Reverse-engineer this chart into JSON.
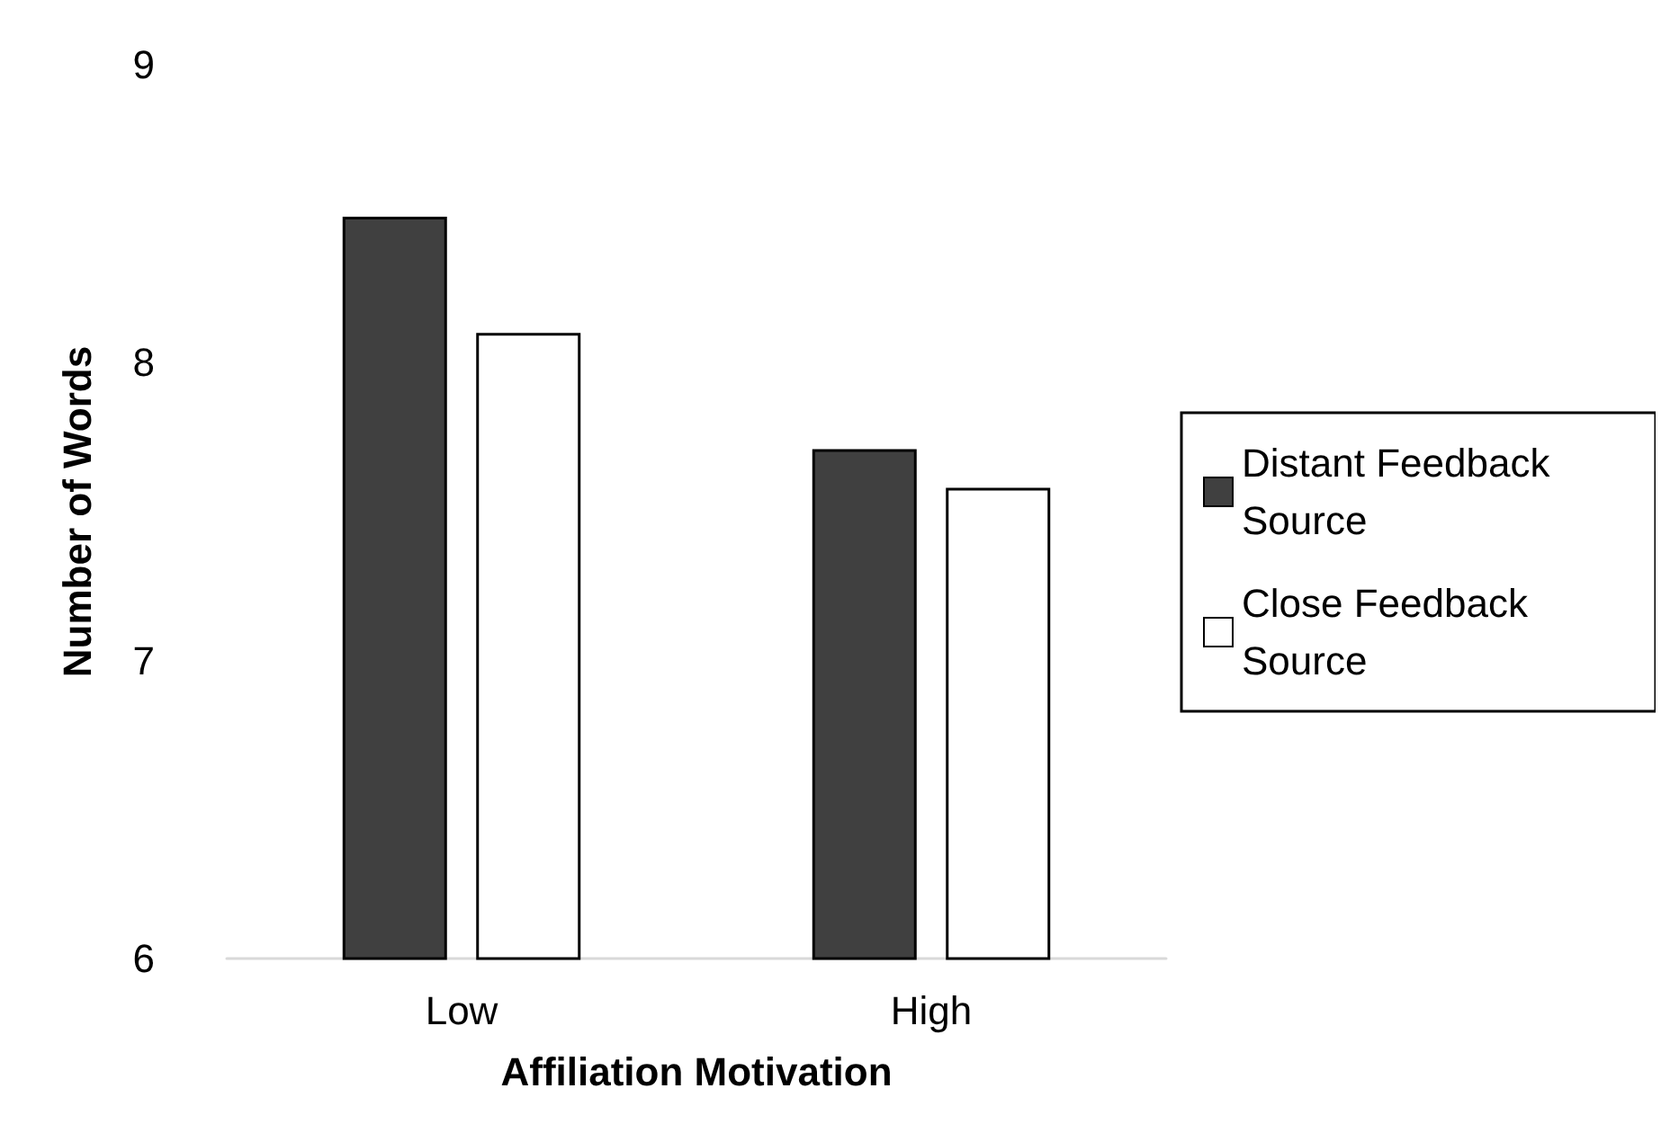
{
  "chart_data": {
    "type": "bar",
    "xlabel": "Affiliation Motivation",
    "ylabel": "Number of Words",
    "categories": [
      "Low",
      "High"
    ],
    "series": [
      {
        "name": "Distant Feedback Source",
        "color": "#404040",
        "values": [
          8.49,
          7.71
        ]
      },
      {
        "name": "Close Feedback Source",
        "color": "#ffffff",
        "values": [
          8.1,
          7.58
        ]
      }
    ],
    "ylim": [
      6,
      9
    ],
    "yticks": [
      6,
      7,
      8,
      9
    ],
    "grid": false,
    "legend": "right"
  }
}
